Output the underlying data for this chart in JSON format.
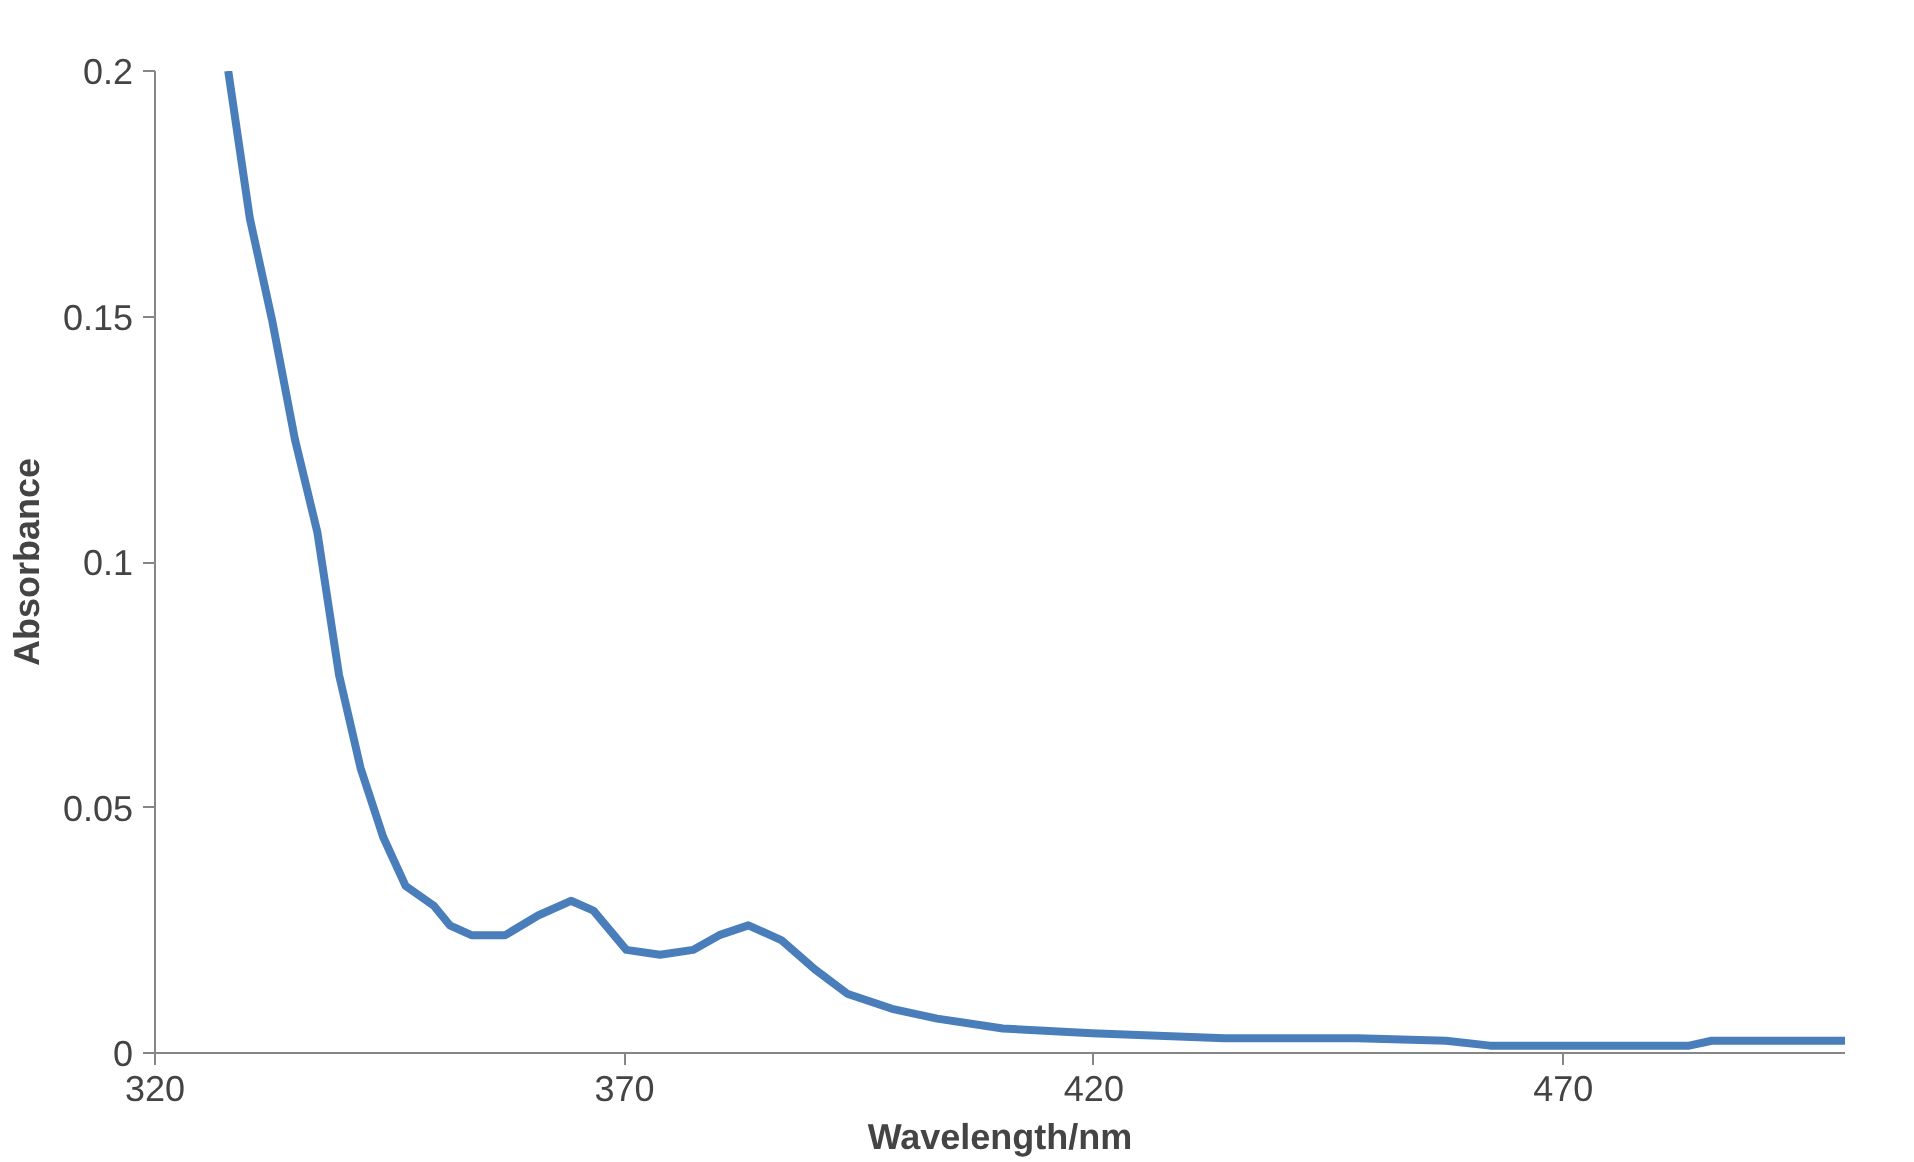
{
  "chart_data": {
    "type": "line",
    "xlabel": "Wavelength/nm",
    "ylabel": "Absorbance",
    "x": [
      327.8,
      330.1,
      332.5,
      334.9,
      337.3,
      339.6,
      341.9,
      344.3,
      346.7,
      349.7,
      351.4,
      353.7,
      357.3,
      360.8,
      364.3,
      366.7,
      370.2,
      373.8,
      377.3,
      380.1,
      383.2,
      386.7,
      390.3,
      393.8,
      398.5,
      403.3,
      410.3,
      419.8,
      433.9,
      448.1,
      457.5,
      462.2,
      483.4,
      485.8,
      500
    ],
    "series": [
      {
        "color": "#4a7ebb",
        "values": [
          0.2,
          0.17,
          0.149,
          0.125,
          0.106,
          0.077,
          0.058,
          0.044,
          0.034,
          0.03,
          0.026,
          0.024,
          0.024,
          0.028,
          0.031,
          0.029,
          0.021,
          0.02,
          0.021,
          0.024,
          0.026,
          0.023,
          0.017,
          0.012,
          0.009,
          0.007,
          0.005,
          0.004,
          0.003,
          0.003,
          0.0025,
          0.0015,
          0.0015,
          0.0025,
          0.0025
        ]
      }
    ],
    "xlim": [
      320,
      500
    ],
    "xticks": [
      320,
      370,
      420,
      470
    ],
    "ylim": [
      0,
      0.2
    ],
    "yticks": [
      0,
      0.05,
      0.1,
      0.15,
      0.2
    ],
    "grid": false,
    "marker": "none",
    "line_style": "solid"
  }
}
